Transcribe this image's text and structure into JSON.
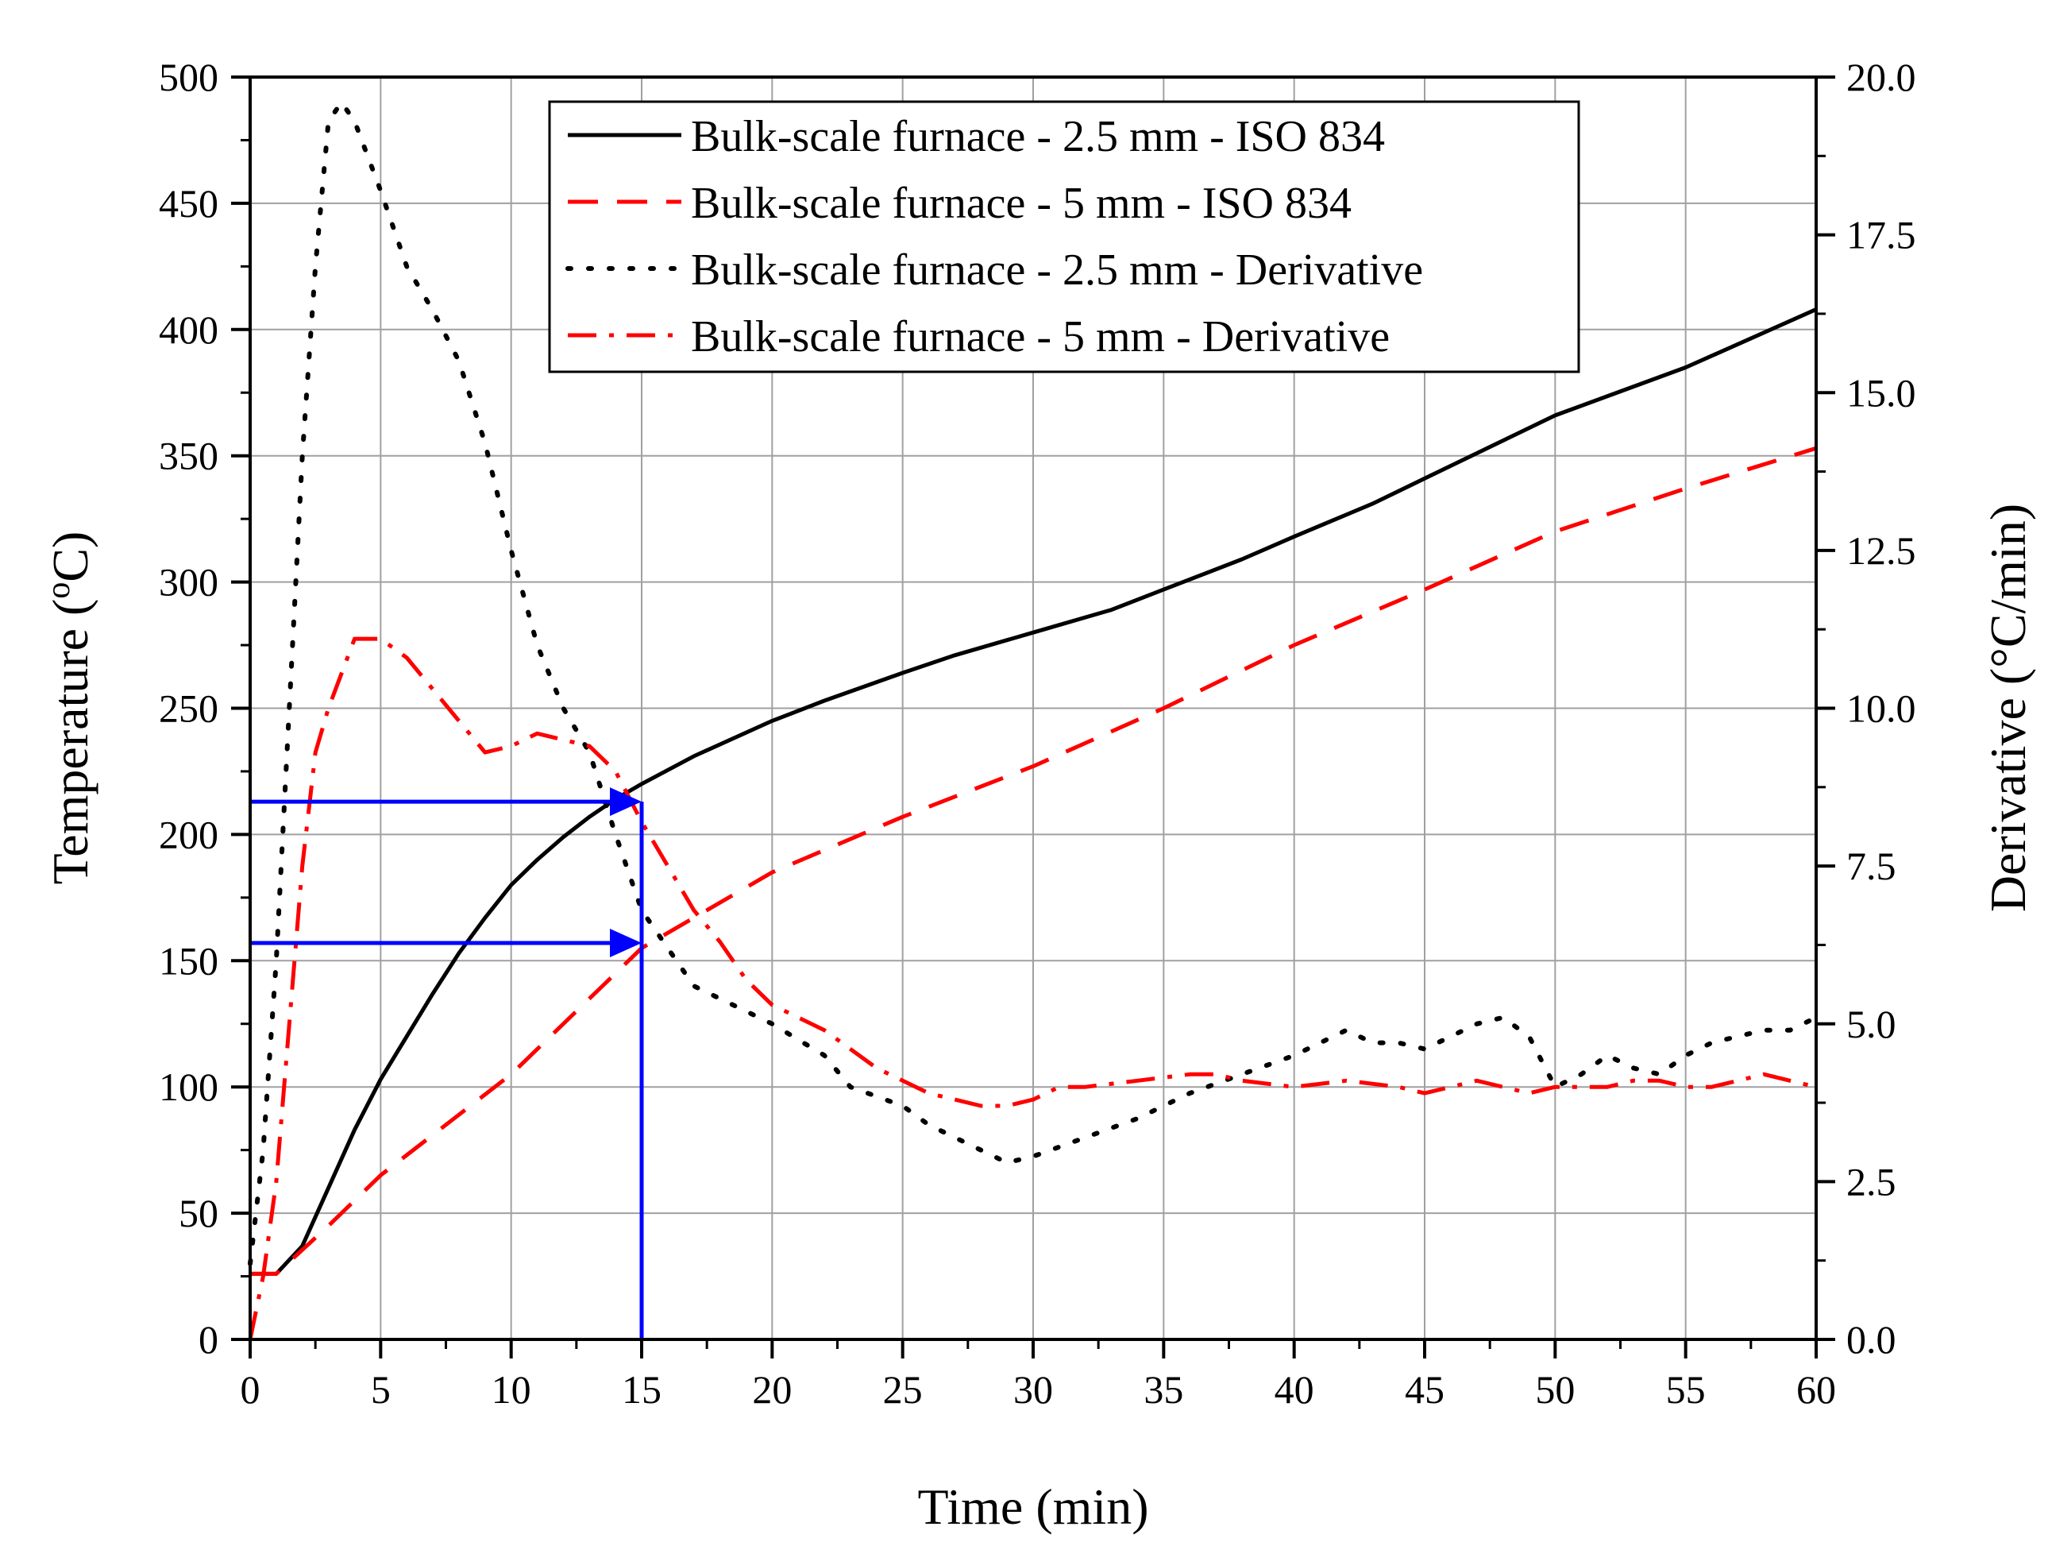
{
  "chart_data": {
    "type": "line",
    "title": "",
    "xlabel": "Time (min)",
    "ylabel": "Temperature (°C)",
    "ylabel_parts": {
      "prefix": "Temperature (",
      "sup": "o",
      "suffix": "C)"
    },
    "y2label": "Derivative (°C/min)",
    "xlim": [
      0,
      60
    ],
    "ylim": [
      0,
      500
    ],
    "y2lim": [
      0,
      20
    ],
    "grid": true,
    "legend_position": "top-center",
    "x_ticks": [
      "0",
      "5",
      "10",
      "15",
      "20",
      "25",
      "30",
      "35",
      "40",
      "45",
      "50",
      "55",
      "60"
    ],
    "y_ticks": [
      "0",
      "50",
      "100",
      "150",
      "200",
      "250",
      "300",
      "350",
      "400",
      "450",
      "500"
    ],
    "y2_ticks": [
      "0.0",
      "2.5",
      "5.0",
      "7.5",
      "10.0",
      "12.5",
      "15.0",
      "17.5",
      "20.0"
    ],
    "series": [
      {
        "name": "Bulk-scale furnace - 2.5 mm - ISO 834",
        "axis": "left",
        "color": "#000000",
        "style": "solid",
        "points": [
          [
            0,
            26
          ],
          [
            1,
            26
          ],
          [
            2,
            37
          ],
          [
            3,
            60
          ],
          [
            4,
            83
          ],
          [
            5,
            103
          ],
          [
            6,
            120
          ],
          [
            7,
            137
          ],
          [
            8,
            153
          ],
          [
            9,
            167
          ],
          [
            10,
            180
          ],
          [
            11,
            190
          ],
          [
            12,
            199
          ],
          [
            13,
            207
          ],
          [
            14,
            214
          ],
          [
            15,
            220
          ],
          [
            17,
            231
          ],
          [
            20,
            245
          ],
          [
            22,
            253
          ],
          [
            25,
            264
          ],
          [
            27,
            271
          ],
          [
            30,
            280
          ],
          [
            33,
            289
          ],
          [
            35,
            297
          ],
          [
            38,
            309
          ],
          [
            40,
            318
          ],
          [
            43,
            331
          ],
          [
            45,
            341
          ],
          [
            48,
            356
          ],
          [
            50,
            366
          ],
          [
            55,
            385
          ],
          [
            60,
            408
          ]
        ]
      },
      {
        "name": "Bulk-scale furnace - 5 mm - ISO 834",
        "axis": "left",
        "color": "#ff0000",
        "style": "dashed",
        "points": [
          [
            0,
            26
          ],
          [
            1,
            26
          ],
          [
            3,
            45
          ],
          [
            5,
            65
          ],
          [
            10,
            105
          ],
          [
            15,
            155
          ],
          [
            20,
            185
          ],
          [
            25,
            207
          ],
          [
            30,
            227
          ],
          [
            35,
            250
          ],
          [
            40,
            275
          ],
          [
            45,
            297
          ],
          [
            50,
            320
          ],
          [
            55,
            337
          ],
          [
            60,
            353
          ]
        ]
      },
      {
        "name": "Bulk-scale furnace - 2.5 mm - Derivative",
        "axis": "right",
        "color": "#000000",
        "style": "dotted",
        "points": [
          [
            0,
            1.2
          ],
          [
            0.5,
            3
          ],
          [
            1,
            6
          ],
          [
            1.5,
            10
          ],
          [
            2,
            14
          ],
          [
            2.5,
            17
          ],
          [
            3,
            19.3
          ],
          [
            3.5,
            19.6
          ],
          [
            4,
            19.3
          ],
          [
            5,
            18.2
          ],
          [
            6,
            17
          ],
          [
            7,
            16.3
          ],
          [
            8,
            15.5
          ],
          [
            9,
            14.2
          ],
          [
            10,
            12.5
          ],
          [
            11,
            11
          ],
          [
            12,
            10
          ],
          [
            13,
            9.3
          ],
          [
            14,
            8
          ],
          [
            15,
            6.8
          ],
          [
            17,
            5.6
          ],
          [
            20,
            5
          ],
          [
            22,
            4.5
          ],
          [
            23,
            4
          ],
          [
            25,
            3.7
          ],
          [
            26,
            3.4
          ],
          [
            28,
            3
          ],
          [
            29,
            2.8
          ],
          [
            30,
            2.9
          ],
          [
            32,
            3.2
          ],
          [
            34,
            3.5
          ],
          [
            35,
            3.7
          ],
          [
            36,
            3.9
          ],
          [
            38,
            4.2
          ],
          [
            40,
            4.5
          ],
          [
            41,
            4.7
          ],
          [
            42,
            4.9
          ],
          [
            43,
            4.7
          ],
          [
            44,
            4.7
          ],
          [
            45,
            4.6
          ],
          [
            46,
            4.8
          ],
          [
            47,
            5
          ],
          [
            48,
            5.1
          ],
          [
            49,
            4.8
          ],
          [
            50,
            4
          ],
          [
            51,
            4.2
          ],
          [
            52,
            4.5
          ],
          [
            53,
            4.3
          ],
          [
            54,
            4.2
          ],
          [
            55,
            4.5
          ],
          [
            56,
            4.7
          ],
          [
            57,
            4.8
          ],
          [
            58,
            4.9
          ],
          [
            59,
            4.9
          ],
          [
            60,
            5.1
          ]
        ]
      },
      {
        "name": "Bulk-scale furnace - 5 mm - Derivative",
        "axis": "right",
        "color": "#ff0000",
        "style": "dashdot",
        "points": [
          [
            0,
            0
          ],
          [
            0.5,
            1
          ],
          [
            1,
            2.5
          ],
          [
            1.5,
            5
          ],
          [
            2,
            7.5
          ],
          [
            2.5,
            9.3
          ],
          [
            3,
            10
          ],
          [
            4,
            11.1
          ],
          [
            5,
            11.1
          ],
          [
            6,
            10.8
          ],
          [
            7,
            10.3
          ],
          [
            8,
            9.8
          ],
          [
            9,
            9.3
          ],
          [
            10,
            9.4
          ],
          [
            11,
            9.6
          ],
          [
            12,
            9.5
          ],
          [
            13,
            9.4
          ],
          [
            14,
            9
          ],
          [
            15,
            8.2
          ],
          [
            16,
            7.5
          ],
          [
            17,
            6.8
          ],
          [
            18,
            6.3
          ],
          [
            19,
            5.7
          ],
          [
            20,
            5.3
          ],
          [
            22,
            4.9
          ],
          [
            23,
            4.6
          ],
          [
            24,
            4.3
          ],
          [
            25,
            4.1
          ],
          [
            26,
            3.9
          ],
          [
            27,
            3.8
          ],
          [
            28,
            3.7
          ],
          [
            29,
            3.7
          ],
          [
            30,
            3.8
          ],
          [
            31,
            4
          ],
          [
            32,
            4
          ],
          [
            34,
            4.1
          ],
          [
            36,
            4.2
          ],
          [
            37,
            4.2
          ],
          [
            38,
            4.1
          ],
          [
            40,
            4
          ],
          [
            42,
            4.1
          ],
          [
            44,
            4
          ],
          [
            45,
            3.9
          ],
          [
            47,
            4.1
          ],
          [
            48,
            4
          ],
          [
            49,
            3.9
          ],
          [
            50,
            4
          ],
          [
            51,
            4
          ],
          [
            52,
            4
          ],
          [
            53,
            4.1
          ],
          [
            54,
            4.1
          ],
          [
            55,
            4
          ],
          [
            56,
            4
          ],
          [
            57,
            4.1
          ],
          [
            58,
            4.2
          ],
          [
            59,
            4.1
          ],
          [
            60,
            4
          ]
        ]
      }
    ],
    "annotations": [
      {
        "type": "arrow",
        "color": "#0000ff",
        "from": [
          0,
          213
        ],
        "to": [
          15,
          213
        ]
      },
      {
        "type": "arrow",
        "color": "#0000ff",
        "from": [
          0,
          157
        ],
        "to": [
          15,
          157
        ]
      },
      {
        "type": "vline",
        "color": "#0000ff",
        "x": 15,
        "y_range": [
          0,
          213
        ]
      }
    ]
  }
}
